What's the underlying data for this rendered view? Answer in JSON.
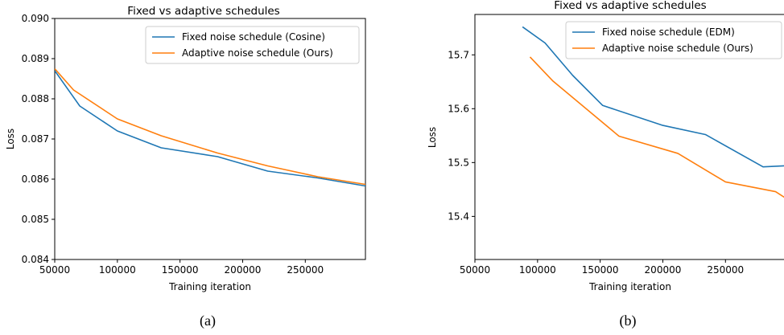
{
  "chart_data": [
    {
      "type": "line",
      "title": "Fixed vs adaptive schedules",
      "xlabel": "Training iteration",
      "ylabel": "Loss",
      "xlim": [
        50000,
        298000
      ],
      "ylim": [
        0.084,
        0.09
      ],
      "xticks": [
        50000,
        100000,
        150000,
        200000,
        250000
      ],
      "yticks": [
        0.084,
        0.085,
        0.086,
        0.087,
        0.088,
        0.089,
        0.09
      ],
      "y_decimals": 3,
      "legend_position": "top-right",
      "grid": false,
      "caption": "(a)",
      "series": [
        {
          "name": "Fixed noise schedule (Cosine)",
          "color": "#1f77b4",
          "x": [
            50000,
            70000,
            100000,
            135000,
            180000,
            220000,
            260000,
            298000
          ],
          "y": [
            0.0887,
            0.08782,
            0.0872,
            0.08678,
            0.08656,
            0.0862,
            0.08603,
            0.08583
          ]
        },
        {
          "name": "Adaptive noise schedule (Ours)",
          "color": "#ff7f0e",
          "x": [
            50000,
            65000,
            100000,
            135000,
            180000,
            220000,
            260000,
            298000
          ],
          "y": [
            0.08875,
            0.08822,
            0.0875,
            0.08708,
            0.08665,
            0.08633,
            0.08606,
            0.08587
          ]
        }
      ]
    },
    {
      "type": "line",
      "title": "Fixed vs adaptive schedules",
      "xlabel": "Training iteration",
      "ylabel": "Loss",
      "xlim": [
        50000,
        298000
      ],
      "ylim": [
        15.32,
        15.775
      ],
      "xticks": [
        50000,
        100000,
        150000,
        200000,
        250000
      ],
      "yticks": [
        15.4,
        15.5,
        15.6,
        15.7
      ],
      "y_decimals": 1,
      "legend_position": "top-right",
      "grid": false,
      "caption": "(b)",
      "series": [
        {
          "name": "Fixed noise schedule (EDM)",
          "color": "#1f77b4",
          "x": [
            88000,
            106000,
            128000,
            152000,
            200000,
            234000,
            280000,
            298000
          ],
          "y": [
            15.752,
            15.722,
            15.662,
            15.606,
            15.569,
            15.552,
            15.492,
            15.494
          ]
        },
        {
          "name": "Adaptive noise schedule (Ours)",
          "color": "#ff7f0e",
          "x": [
            94000,
            112000,
            165000,
            212000,
            250000,
            290000,
            298000
          ],
          "y": [
            15.696,
            15.652,
            15.549,
            15.517,
            15.464,
            15.446,
            15.434
          ]
        }
      ]
    }
  ]
}
